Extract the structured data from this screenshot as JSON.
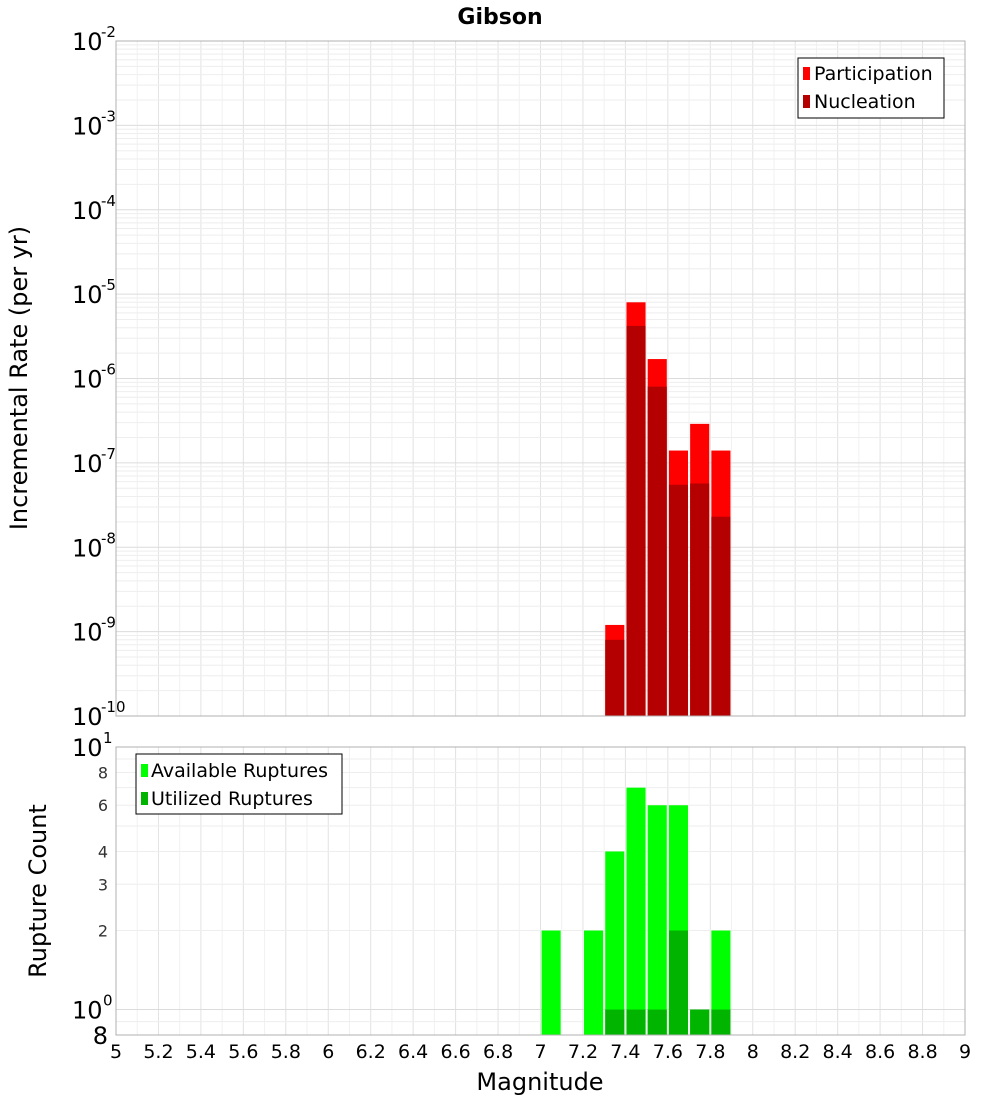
{
  "title": "Gibson",
  "colors": {
    "participation": "#ff0000",
    "nucleation": "#b40000",
    "available": "#00ff00",
    "utilized": "#00b400",
    "grid": "#e6e6e6",
    "frame": "#b0b0b0"
  },
  "chart_data": [
    {
      "type": "bar",
      "title": "Gibson",
      "xlabel": "",
      "ylabel": "Incremental Rate (per yr)",
      "yscale": "log",
      "ylim": [
        1e-10,
        0.01
      ],
      "xlim": [
        5,
        9
      ],
      "x": [
        7.35,
        7.45,
        7.55,
        7.65,
        7.75,
        7.85
      ],
      "series": [
        {
          "name": "Participation",
          "values": [
            1.2e-09,
            8e-06,
            1.7e-06,
            1.4e-07,
            2.9e-07,
            1.4e-07
          ]
        },
        {
          "name": "Nucleation",
          "values": [
            8e-10,
            4.2e-06,
            8e-07,
            5.5e-08,
            5.7e-08,
            2.3e-08
          ]
        }
      ],
      "ytick_exponents": [
        -10,
        -9,
        -8,
        -7,
        -6,
        -5,
        -4,
        -3,
        -2
      ],
      "ytick_base": "10",
      "legend": "top-right",
      "grid": true
    },
    {
      "type": "bar",
      "xlabel": "Magnitude",
      "ylabel": "Rupture Count",
      "yscale": "log",
      "ylim": [
        0.8,
        10
      ],
      "xlim": [
        5,
        9
      ],
      "x": [
        7.05,
        7.25,
        7.35,
        7.45,
        7.55,
        7.65,
        7.75,
        7.85
      ],
      "series": [
        {
          "name": "Available Ruptures",
          "values": [
            2,
            2,
            4,
            7,
            6,
            6,
            1,
            2
          ]
        },
        {
          "name": "Utilized Ruptures",
          "values": [
            0,
            0,
            1,
            1,
            1,
            2,
            1,
            1
          ]
        }
      ],
      "ytick_major_exponents": [
        0,
        1
      ],
      "ytick_base": "10",
      "ytick_minor": [
        "2",
        "3",
        "4",
        "6",
        "8"
      ],
      "ytick_bottom": "8",
      "legend": "top-left",
      "grid": true
    }
  ],
  "xticks": [
    "5",
    "5.2",
    "5.4",
    "5.6",
    "5.8",
    "6",
    "6.2",
    "6.4",
    "6.6",
    "6.8",
    "7",
    "7.2",
    "7.4",
    "7.6",
    "7.8",
    "8",
    "8.2",
    "8.4",
    "8.6",
    "8.8",
    "9"
  ]
}
